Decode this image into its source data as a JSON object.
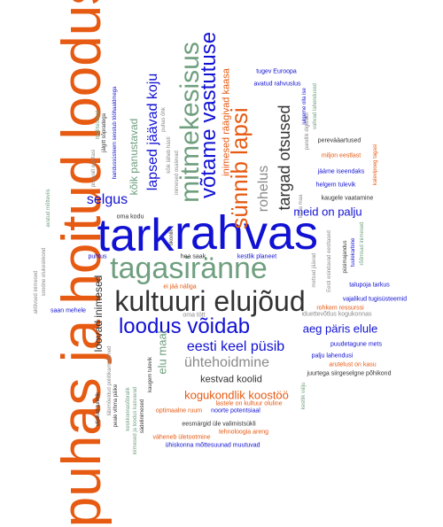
{
  "words": {
    "tark": "tark",
    "rahvas": "rahvas",
    "puhas_ja_hoitud_loodus": "puhas ja hoitud loodus",
    "kultuuri_elujoud": "kultuuri elujõud",
    "tagasiranne": "tagasiränne",
    "mitmekesisus": "mitmekesisus",
    "votame_vastutuse": "võtame vastutuse",
    "loodus_voidab": "loodus võidab",
    "sunnib_lapsi": "sünnib lapsi",
    "lapsed_jaavad_koju": "lapsed jäävad koju",
    "targad_otsused": "targad otsused",
    "eesti_keel_pusib": "eesti keel püsib",
    "uhtehoidmine": "ühtehoidmine",
    "rohelus": "rohelus",
    "selgus": "selgus",
    "meid_on_palju": "meid on palju",
    "aeg_paris_elule": "aeg päris elule",
    "kogukondlik_koostoo": "kogukondlik koostöö",
    "inimesed_raagivad_kaasa": "inimesed räägivad kaasa",
    "koik_panustavad": "kõik panustavad",
    "loovad_inimesed": "loovad inimesed",
    "elu_maal": "elu maal",
    "kestvad_koolid": "kestvad koolid",
    "tugev_euroopa": "tugev Euroopa",
    "avatud_rahvuslus": "avatud rahvuslus",
    "perevaartused": "perevääartused",
    "miljon_eestlast": "miljon eestlast",
    "jaame_iseendaks": "jääme iseendaks",
    "helgem_tulevik": "helgem tulevik",
    "kaugele_vaatamine": "kaugele vaatamine",
    "oma_kodu": "oma kodu",
    "puhtus": "puhtus",
    "hea_saak": "hea saak",
    "kestlik_planeet": "kestlik planeet",
    "okonlik": "ökonlik",
    "ei_jaa_naliga": "ei jää näliga",
    "oma_tott": "oma tött",
    "iduettevotlus_kogukonnas": "iduettevõtlus kogukonnas",
    "rohkem_ressurssi": "rohkem ressurssi",
    "puudetagune_mets": "puudetagune mets",
    "palju_lahendusi": "palju lahendusi",
    "arutelust_on_kasu": "arutelust on kasu",
    "juurtega_siirgeselgne_pohikond": "juurtega siirgeselgne põhikond",
    "saan_mehele": "saan mehele",
    "lastele_on_kultuur_oluline": "lastele on kultuur oluline",
    "optimaalne_ruum": "optimaalne ruum",
    "noorte_potentsiaal": "noorte potentsiaal",
    "eesmargid_ule_valimistsukli": "eesmärgid üle valimistsükli",
    "tehnoloogia_areng": "tehnoloogia areng",
    "vaheneb_uletootmine": "väheneb ületootmine",
    "uhiskonna_mottesuunad_muutuvad": "ühiskonna mõttesuunad muutuvad",
    "talupoja_tarkus": "talupoja tarkus",
    "vajalikud_tugisusteemid": "vajalikud tugisüsteemid",
    "kestvad_koolid_small": "kestvad koolid",
    "puhas_ohk": "puhas õhk",
    "aktiivsed_inimesed": "aktiivsed inimesed",
    "soodne_elukeskkond": "soodne elukeskkond",
    "avatud_motteviis": "avatud mõtteviis",
    "jalgitt_sopradega": "jälgitt sõpradega",
    "pisavalt_eestlasi": "pisavalt eestlasi",
    "traditsioonid": "traditsioonid",
    "hariduss_seostub": "haridussüsteem seostub tööhaaldmega",
    "koik_laheb_hasti": "kõik läheb hästi",
    "puhas_ohk2": "puhas õhk",
    "inimesed_osalevad": "inimesed osalevad",
    "pandlik_digiilider": "pandlik digiilider",
    "julgeme_olla_ise": "julgeme olla ise",
    "vahvad_lahendused": "vahvad lahendused",
    "kalevipoeg_tagasi": "kalevipoeg tagasi",
    "metsad_jaavad": "metsad jäävad",
    "eesti_esindavad": "Eesti esindavad eestlased",
    "pusimajanduse": "püsimajandus",
    "tuuleturbine": "tuulekarbine",
    "rohkem_inimesed": "rõõmsad inimesed",
    "tema_maa": "tema maa",
    "kestlik_valju": "kestlik välju",
    "viljakas_tulevik": "viljakas tulevik",
    "labimoeldud": "läbimõeldud poliitikameetmed",
    "pealegi_vihma": "peale vihma päike",
    "keskkonnasoolik": "keskkonnasõbralik",
    "inimesed_ja_kasus": "inimesed ja loodus kasvavad",
    "kaugem_tulevik": "kaugem tulevik",
    "sadelinimesed": "sädelinimesed"
  },
  "colors": {
    "blue": "#1111d4",
    "orange": "#e65a12",
    "green": "#6f9f7f",
    "dark": "#333333",
    "grey": "#8a8a8a"
  }
}
